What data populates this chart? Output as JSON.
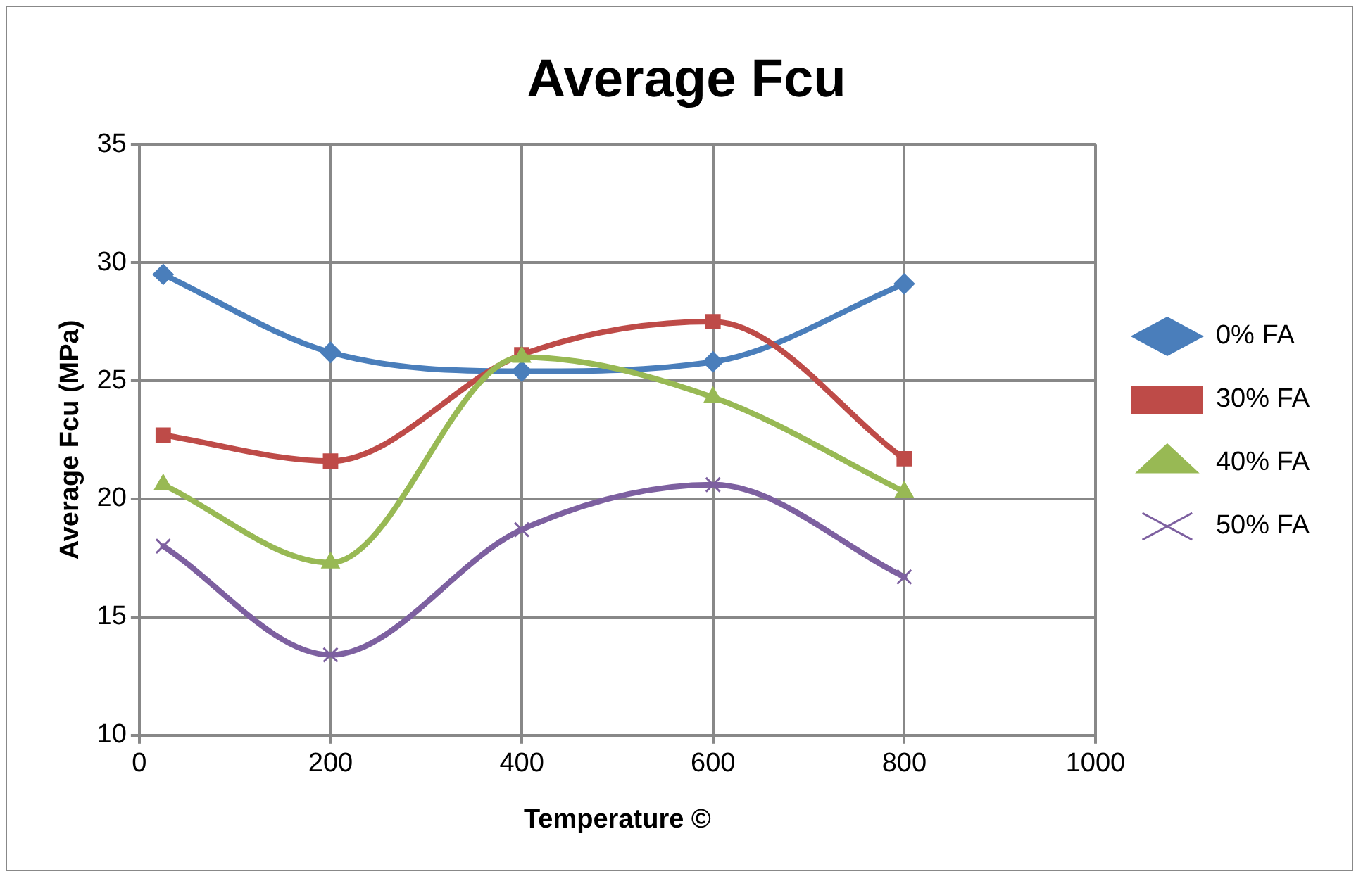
{
  "chart_data": {
    "type": "line",
    "title": "Average Fcu",
    "xlabel": "Temperature ©",
    "ylabel": "Average Fcu (MPa)",
    "x": [
      25,
      200,
      400,
      600,
      800
    ],
    "series": [
      {
        "name": "0% FA",
        "color": "#4a7ebb",
        "marker": "diamond",
        "values": [
          29.5,
          26.2,
          25.4,
          25.8,
          29.1
        ]
      },
      {
        "name": "30% FA",
        "color": "#be4b48",
        "marker": "square",
        "values": [
          22.7,
          21.6,
          26.1,
          27.5,
          21.7
        ]
      },
      {
        "name": "40% FA",
        "color": "#98b954",
        "marker": "triangle",
        "values": [
          20.6,
          17.3,
          26.0,
          24.3,
          20.3
        ]
      },
      {
        "name": "50% FA",
        "color": "#7d60a0",
        "marker": "cross",
        "values": [
          18.0,
          13.4,
          18.7,
          20.6,
          16.7
        ]
      }
    ],
    "xlim": [
      0,
      1000
    ],
    "xticks": [
      0,
      200,
      400,
      600,
      800,
      1000
    ],
    "ylim": [
      10,
      35
    ],
    "yticks": [
      10,
      15,
      20,
      25,
      30,
      35
    ],
    "grid": true,
    "legend": "right",
    "line_style": "solid"
  }
}
